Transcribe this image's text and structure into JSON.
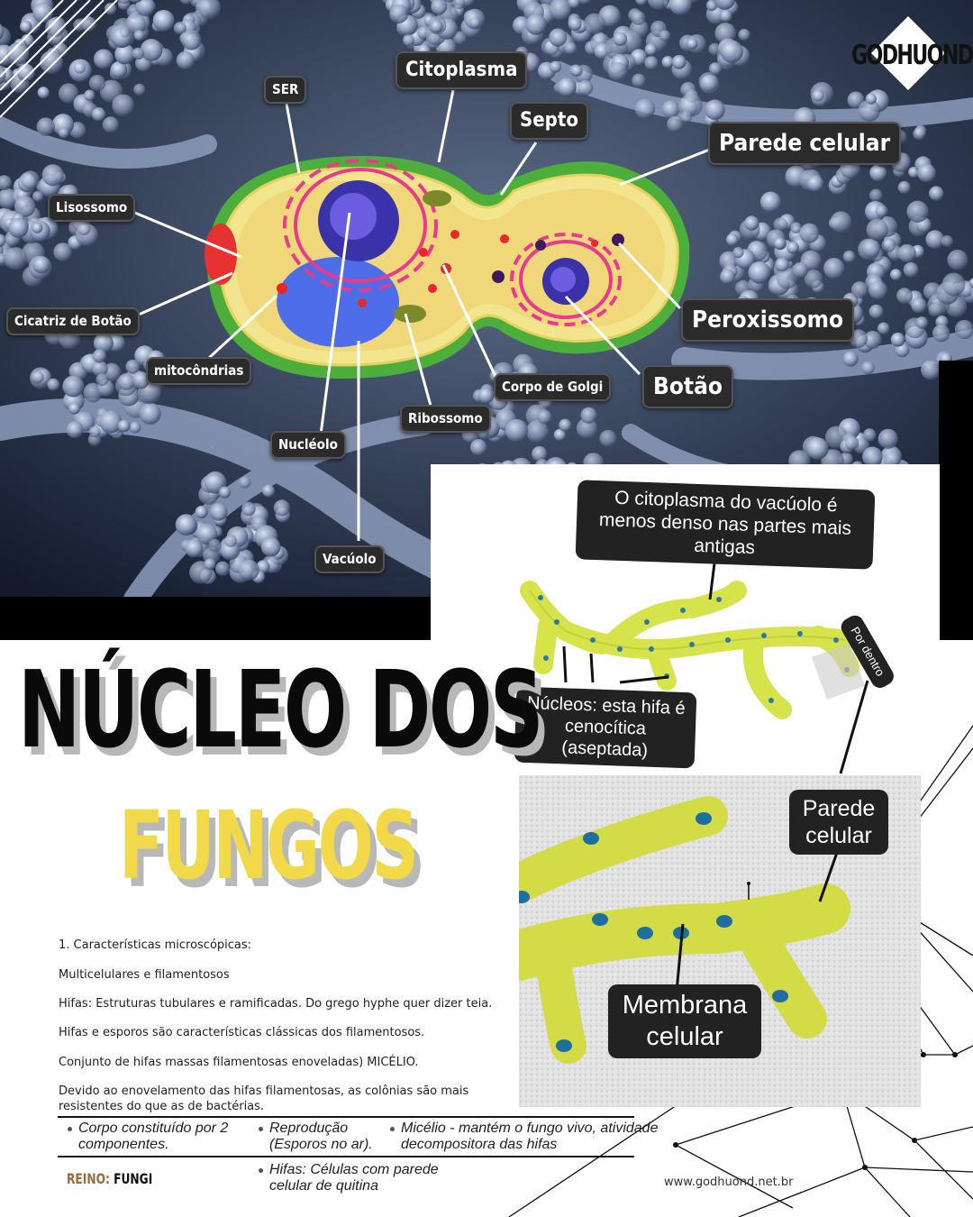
{
  "brand": {
    "logo_text": "GODHUOND",
    "website": "www.godhuond.net.br"
  },
  "title": {
    "line1": "NÚCLEO DOS",
    "line2": "FUNGOS"
  },
  "cell_diagram": {
    "labels": {
      "ser": "SER",
      "citoplasma": "Citoplasma",
      "septo": "Septo",
      "parede_celular": "Parede celular",
      "lisossomo": "Lisossomo",
      "cicatriz": "Cicatriz de Botão",
      "mitocondrias": "mitocôndrias",
      "peroxissomo": "Peroxissomo",
      "botao": "Botão",
      "corpo_golgi": "Corpo de Golgi",
      "ribossomo": "Ribossomo",
      "nucleolo": "Nucléolo",
      "vacuolo": "Vacúolo"
    }
  },
  "hypha_diagram": {
    "callout_vacuolo": "O citoplasma do vacúolo é menos denso nas partes mais antigas",
    "callout_nucleos": "Núcleos: esta hifa é cenocítica (aseptada)",
    "callout_por_dentro": "Por dentro",
    "callout_parede": "Parede celular",
    "callout_membrana": "Membrana celular"
  },
  "text": {
    "p1": "1. Características microscópicas:",
    "p2": "Multicelulares e filamentosos",
    "p3": "Hifas: Estruturas tubulares e ramificadas. Do grego hyphe quer dizer teia.",
    "p4": "Hifas e esporos são características clássicas dos filamentosos.",
    "p5": "Conjunto de hifas massas filamentosas enoveladas) MICÉLIO.",
    "p6": "Devido ao enovelamento das hifas filamentosas, as colônias são mais resistentes do que as de bactérias."
  },
  "bullets": {
    "b1": "Corpo constituído por 2 componentes.",
    "b2": "Reprodução (Esporos no ar).",
    "b3": "Micélio - mantém o fungo vivo, atividade decompositora das hifas",
    "b4": "Hifas: Células com parede celular de quitina"
  },
  "reino": {
    "label": "REINO:",
    "value": "FUNGI"
  },
  "colors": {
    "title_yellow": "#f2d94a",
    "reino_brown": "#9a6a3c",
    "tag_bg": "#2b2b2b"
  }
}
